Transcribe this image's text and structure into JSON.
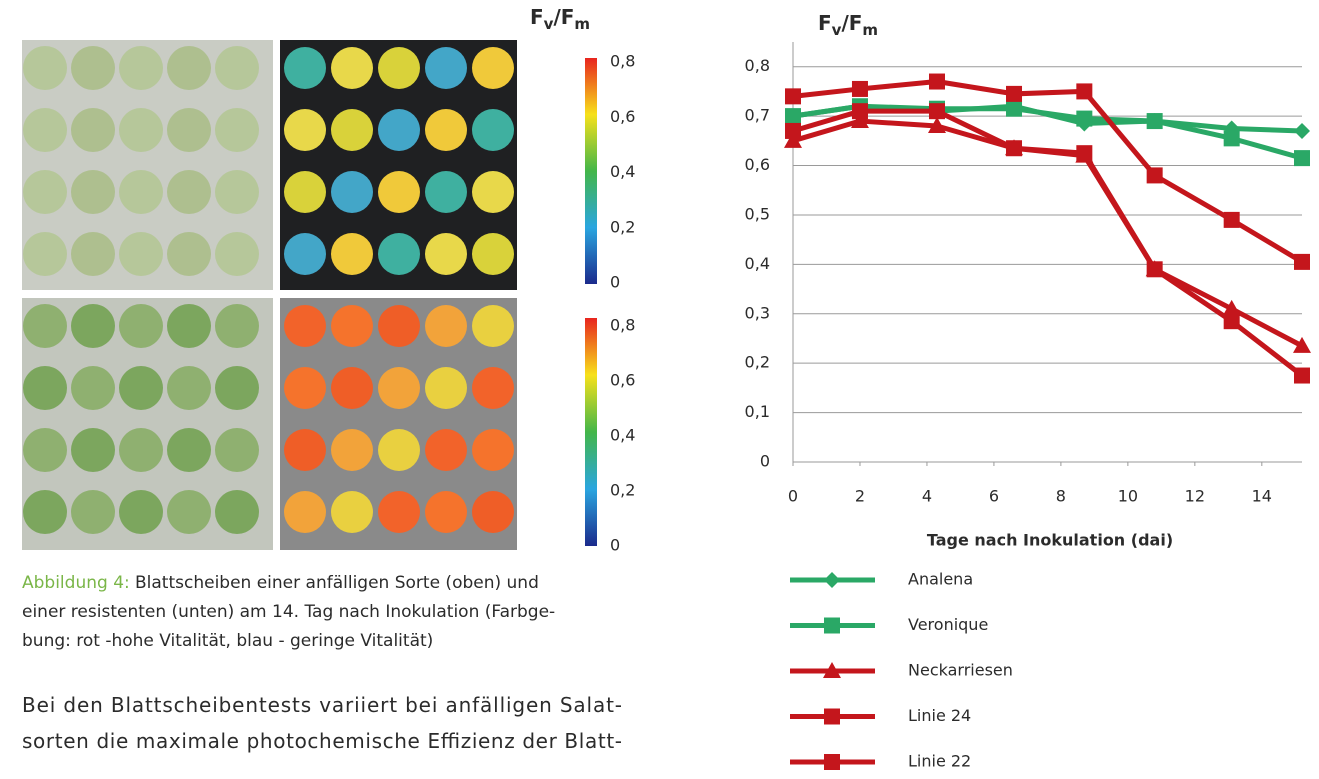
{
  "figure": {
    "colorbar_label": [
      "F",
      "v",
      "/F",
      "m"
    ],
    "colorbar_top_ticks": [
      "0,8",
      "0,6",
      "0,4",
      "0,2",
      "0"
    ],
    "colorbar_bottom_ticks": [
      "0,8",
      "0,6",
      "0,4",
      "0,2",
      "0"
    ],
    "caption_label": "Abbildung 4:",
    "caption_lines": [
      "Blattscheiben einer anfälligen Sorte (oben) und",
      "einer resistenten (unten) am 14. Tag nach Inokulation (Farbge-",
      "bung: rot -hohe Vitalität, blau - geringe Vitalität)"
    ]
  },
  "paragraph_lines": [
    "Bei den Blattscheibentests variiert bei anfälligen Salat-",
    "sorten die maximale photochemische Effizienz der Blatt-"
  ],
  "chart_data": {
    "type": "line",
    "ylabel": [
      "F",
      "v",
      "/F",
      "m"
    ],
    "xlabel": "Tage nach Inokulation (dai)",
    "x": [
      0,
      2,
      4.3,
      6.6,
      8.7,
      10.8,
      13.1,
      15.2
    ],
    "xlim": [
      0,
      15.2
    ],
    "xticks": [
      0,
      2,
      4,
      6,
      8,
      10,
      12,
      14
    ],
    "ylim": [
      0,
      0.85
    ],
    "yticks": [
      0,
      {
        "value": 0.1,
        "label": "0,1"
      },
      {
        "value": 0.2,
        "label": "0,2"
      },
      {
        "value": 0.3,
        "label": "0,3"
      },
      {
        "value": 0.4,
        "label": "0,4"
      },
      {
        "value": 0.5,
        "label": "0,5"
      },
      {
        "value": 0.6,
        "label": "0,6"
      },
      {
        "value": 0.7,
        "label": "0,7"
      },
      {
        "value": 0.8,
        "label": "0,8"
      }
    ],
    "grid": true,
    "series": [
      {
        "name": "Analena",
        "color": "#2aa866",
        "marker": "diamond",
        "values": [
          0.7,
          0.72,
          0.71,
          0.72,
          0.685,
          0.69,
          0.675,
          0.67
        ]
      },
      {
        "name": "Veronique",
        "color": "#2aa866",
        "marker": "square",
        "values": [
          0.7,
          0.72,
          0.715,
          0.715,
          0.695,
          0.69,
          0.655,
          0.615
        ]
      },
      {
        "name": "Neckarriesen",
        "color": "#c4161c",
        "marker": "triangle",
        "values": [
          0.65,
          0.69,
          0.68,
          0.635,
          0.62,
          0.39,
          0.31,
          0.235
        ]
      },
      {
        "name": "Linie 24",
        "color": "#c4161c",
        "marker": "square",
        "values": [
          0.74,
          0.755,
          0.77,
          0.745,
          0.75,
          0.58,
          0.49,
          0.405
        ]
      },
      {
        "name": "Linie 22",
        "color": "#c4161c",
        "marker": "square",
        "values": [
          0.67,
          0.71,
          0.71,
          0.635,
          0.625,
          0.39,
          0.285,
          0.175
        ]
      }
    ]
  }
}
